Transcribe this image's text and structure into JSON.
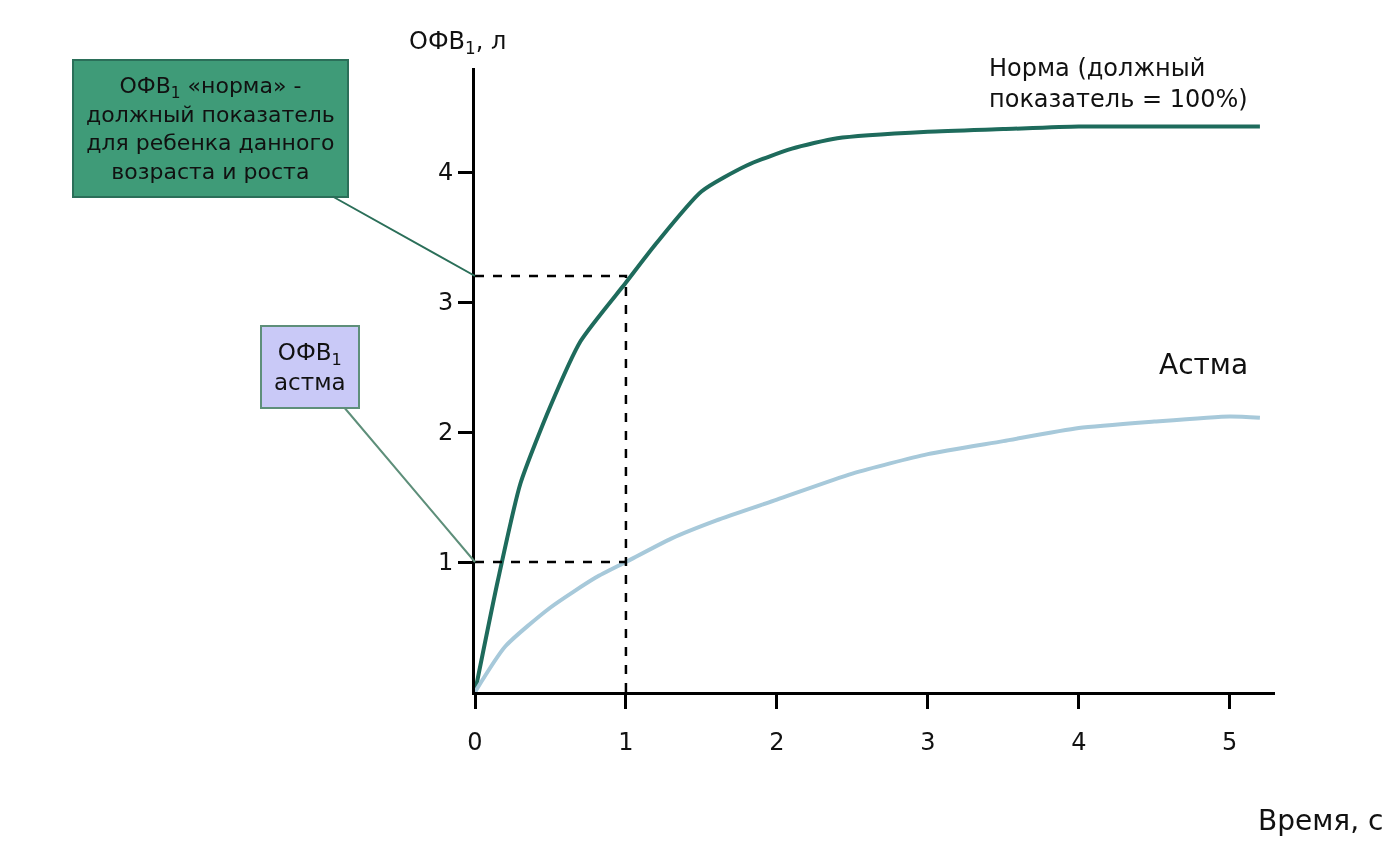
{
  "chart_data": {
    "type": "line",
    "xlabel": "Время, с",
    "ylabel": "ОФВ$_{1}$, л",
    "xlim": [
      0,
      5.3
    ],
    "xticks": [
      0,
      1,
      2,
      3,
      4,
      5
    ],
    "ylim": [
      0,
      4.8
    ],
    "yticks": [
      1,
      2,
      3,
      4
    ],
    "grid": false,
    "legend": false,
    "marker": "none",
    "series": [
      {
        "name": "Норма (должный показатель = 100%)",
        "color": "#1e6b5c",
        "x": [
          0,
          0.15,
          0.3,
          0.5,
          0.7,
          1,
          1.2,
          1.5,
          1.8,
          2.1,
          2.4,
          3,
          3.5,
          4,
          4.5,
          5.2
        ],
        "values": [
          0,
          0.85,
          1.6,
          2.2,
          2.7,
          3.15,
          3.45,
          3.85,
          4.05,
          4.18,
          4.26,
          4.31,
          4.33,
          4.35,
          4.35,
          4.35
        ]
      },
      {
        "name": "Астма",
        "color": "#a7c9da",
        "x": [
          0,
          0.2,
          0.5,
          0.8,
          1,
          1.3,
          1.6,
          2,
          2.5,
          3,
          3.5,
          4,
          4.5,
          5,
          5.2
        ],
        "values": [
          0,
          0.35,
          0.65,
          0.88,
          1.0,
          1.18,
          1.32,
          1.48,
          1.68,
          1.83,
          1.93,
          2.03,
          2.08,
          2.12,
          2.11
        ]
      },
      {
        "color": "#000000",
        "line_style": "dashed",
        "x": [
          0,
          1,
          1
        ],
        "values": [
          3.2,
          3.2,
          0
        ]
      },
      {
        "color": "#000000",
        "line_style": "dashed",
        "x": [
          0,
          1
        ],
        "values": [
          1,
          1
        ]
      }
    ],
    "annotations": [
      {
        "text": "ОФВ$_{1}$ «норма» - должный показатель для ребенка данного возраста и роста",
        "x": 0,
        "y": 3.2
      },
      {
        "text": "ОФВ$_{1}$ астма",
        "x": 0,
        "y": 1
      }
    ]
  }
}
